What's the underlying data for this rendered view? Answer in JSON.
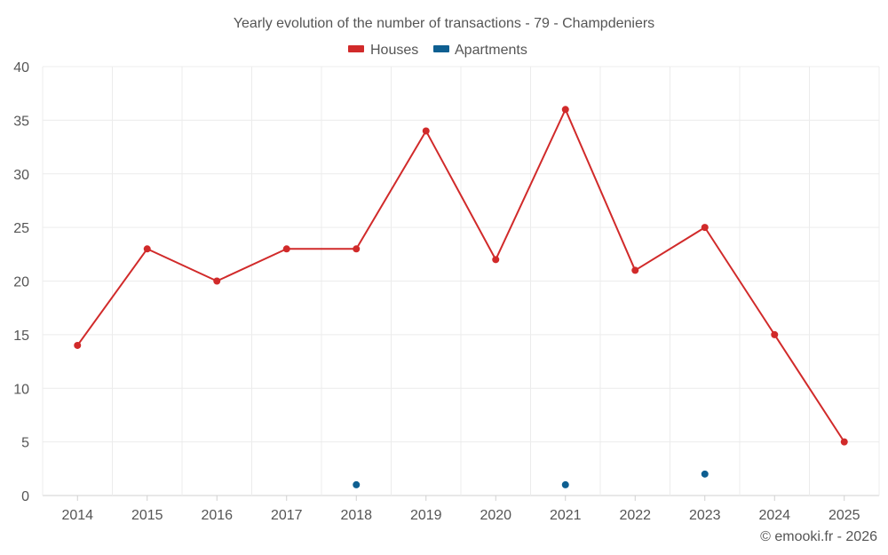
{
  "chart_data": {
    "type": "line",
    "title": "Yearly evolution of the number of transactions - 79 - Champdeniers",
    "categories": [
      "2014",
      "2015",
      "2016",
      "2017",
      "2018",
      "2019",
      "2020",
      "2021",
      "2022",
      "2023",
      "2024",
      "2025"
    ],
    "series": [
      {
        "name": "Houses",
        "color": "#d12a2a",
        "values": [
          14,
          23,
          20,
          23,
          23,
          34,
          22,
          36,
          21,
          25,
          15,
          5
        ]
      },
      {
        "name": "Apartments",
        "color": "#0e5f91",
        "values": [
          null,
          null,
          null,
          null,
          1,
          null,
          null,
          1,
          null,
          2,
          null,
          null
        ]
      }
    ],
    "ylim": [
      0,
      40
    ],
    "yticks": [
      0,
      5,
      10,
      15,
      20,
      25,
      30,
      35,
      40
    ],
    "xlabel": "",
    "ylabel": "",
    "grid": true,
    "legend_position": "top-center"
  },
  "credit": "© emooki.fr - 2026"
}
